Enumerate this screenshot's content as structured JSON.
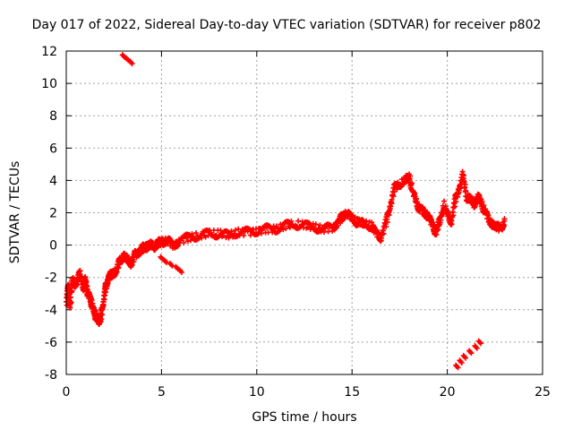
{
  "chart_data": {
    "type": "scatter",
    "title": "Day 017 of 2022, Sidereal Day-to-day VTEC variation (SDTVAR) for receiver p802",
    "xlabel": "GPS time / hours",
    "ylabel": "SDTVAR / TECUs",
    "xlim": [
      0,
      25
    ],
    "ylim": [
      -8,
      12
    ],
    "x_ticks": [
      0,
      5,
      10,
      15,
      20,
      25
    ],
    "y_ticks": [
      -8,
      -6,
      -4,
      -2,
      0,
      2,
      4,
      6,
      8,
      10,
      12
    ],
    "grid": true,
    "series": [
      {
        "name": "SDTVAR",
        "color": "#ff0000",
        "marker": "plus",
        "trace": [
          [
            0.0,
            -3.5
          ],
          [
            0.1,
            -2.5
          ],
          [
            0.2,
            -3.8
          ],
          [
            0.3,
            -2.2
          ],
          [
            0.5,
            -2.4
          ],
          [
            0.7,
            -1.8
          ],
          [
            0.9,
            -2.6
          ],
          [
            1.0,
            -2.2
          ],
          [
            1.1,
            -2.9
          ],
          [
            1.2,
            -3.2
          ],
          [
            1.3,
            -3.5
          ],
          [
            1.4,
            -4.0
          ],
          [
            1.5,
            -4.3
          ],
          [
            1.6,
            -4.6
          ],
          [
            1.7,
            -4.7
          ],
          [
            1.8,
            -4.5
          ],
          [
            1.9,
            -3.8
          ],
          [
            2.0,
            -2.9
          ],
          [
            2.1,
            -2.4
          ],
          [
            2.2,
            -2.0
          ],
          [
            2.4,
            -1.8
          ],
          [
            2.6,
            -1.6
          ],
          [
            2.8,
            -1.0
          ],
          [
            3.0,
            -0.7
          ],
          [
            3.2,
            -0.9
          ],
          [
            3.4,
            -1.1
          ],
          [
            3.6,
            -0.6
          ],
          [
            3.8,
            -0.4
          ],
          [
            4.0,
            -0.2
          ],
          [
            4.2,
            -0.1
          ],
          [
            4.4,
            0.0
          ],
          [
            4.6,
            -0.1
          ],
          [
            4.8,
            0.1
          ],
          [
            5.0,
            0.2
          ],
          [
            5.3,
            0.3
          ],
          [
            5.6,
            0.0
          ],
          [
            6.0,
            0.3
          ],
          [
            6.5,
            0.5
          ],
          [
            7.0,
            0.6
          ],
          [
            7.5,
            0.7
          ],
          [
            8.0,
            0.7
          ],
          [
            8.5,
            0.6
          ],
          [
            9.0,
            0.8
          ],
          [
            9.5,
            0.8
          ],
          [
            10.0,
            0.9
          ],
          [
            10.5,
            1.0
          ],
          [
            11.0,
            1.0
          ],
          [
            11.5,
            1.2
          ],
          [
            12.0,
            1.3
          ],
          [
            12.5,
            1.2
          ],
          [
            13.0,
            1.1
          ],
          [
            13.5,
            1.0
          ],
          [
            14.0,
            1.1
          ],
          [
            14.3,
            1.5
          ],
          [
            14.5,
            1.8
          ],
          [
            14.7,
            2.0
          ],
          [
            15.0,
            1.6
          ],
          [
            15.3,
            1.4
          ],
          [
            15.6,
            1.3
          ],
          [
            16.0,
            1.2
          ],
          [
            16.2,
            0.8
          ],
          [
            16.5,
            0.5
          ],
          [
            16.8,
            1.5
          ],
          [
            17.0,
            2.5
          ],
          [
            17.2,
            3.5
          ],
          [
            17.5,
            3.8
          ],
          [
            17.8,
            4.0
          ],
          [
            18.0,
            4.2
          ],
          [
            18.2,
            3.2
          ],
          [
            18.4,
            2.5
          ],
          [
            18.6,
            2.2
          ],
          [
            18.8,
            2.0
          ],
          [
            19.0,
            1.8
          ],
          [
            19.2,
            1.2
          ],
          [
            19.4,
            0.8
          ],
          [
            19.6,
            1.5
          ],
          [
            19.8,
            2.5
          ],
          [
            20.0,
            1.8
          ],
          [
            20.2,
            1.5
          ],
          [
            20.4,
            2.8
          ],
          [
            20.6,
            3.5
          ],
          [
            20.8,
            4.3
          ],
          [
            21.0,
            3.0
          ],
          [
            21.2,
            2.8
          ],
          [
            21.4,
            2.5
          ],
          [
            21.6,
            3.0
          ],
          [
            21.8,
            2.5
          ],
          [
            22.0,
            2.0
          ],
          [
            22.2,
            1.5
          ],
          [
            22.5,
            1.2
          ],
          [
            22.8,
            1.0
          ],
          [
            23.0,
            1.5
          ]
        ],
        "outliers": [
          [
            3.0,
            11.7
          ],
          [
            3.2,
            11.5
          ],
          [
            3.4,
            11.3
          ],
          [
            5.0,
            -0.8
          ],
          [
            5.2,
            -1.0
          ],
          [
            5.5,
            -1.2
          ],
          [
            5.8,
            -1.4
          ],
          [
            6.0,
            -1.6
          ],
          [
            20.5,
            -7.5
          ],
          [
            20.7,
            -7.2
          ],
          [
            20.9,
            -6.9
          ],
          [
            21.2,
            -6.6
          ],
          [
            21.5,
            -6.3
          ],
          [
            21.7,
            -6.0
          ]
        ]
      }
    ]
  }
}
